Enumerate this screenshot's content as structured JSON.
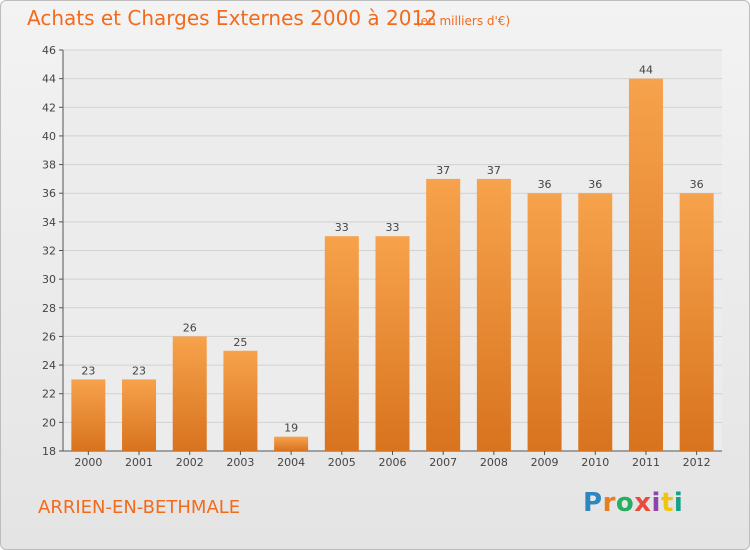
{
  "header": {
    "title": "Achats et Charges Externes 2000 à 2012",
    "unit": "(en milliers d'€)"
  },
  "footer": {
    "commune": "ARRIEN-EN-BETHMALE",
    "brand": "Proxiti",
    "brand_letters": [
      {
        "char": "P",
        "color": "#2e86c1"
      },
      {
        "char": "r",
        "color": "#e67e22"
      },
      {
        "char": "o",
        "color": "#27ae60"
      },
      {
        "char": "x",
        "color": "#e74c3c"
      },
      {
        "char": "i",
        "color": "#8e44ad"
      },
      {
        "char": "t",
        "color": "#f1c40f"
      },
      {
        "char": "i",
        "color": "#16a085"
      }
    ]
  },
  "colors": {
    "accent": "#f26b1d",
    "bar_top": "#f7a24c",
    "bar_bottom": "#d8731e",
    "grid": "#d2d2d2",
    "axis": "#555555"
  },
  "chart_data": {
    "type": "bar",
    "title": "Achats et Charges Externes 2000 à 2012",
    "subtitle": "(en milliers d'€)",
    "categories": [
      "2000",
      "2001",
      "2002",
      "2003",
      "2004",
      "2005",
      "2006",
      "2007",
      "2008",
      "2009",
      "2010",
      "2011",
      "2012"
    ],
    "values": [
      23,
      23,
      26,
      25,
      19,
      33,
      33,
      37,
      37,
      36,
      36,
      44,
      36
    ],
    "ylim": [
      18,
      46
    ],
    "yticks": [
      18,
      20,
      22,
      24,
      26,
      28,
      30,
      32,
      34,
      36,
      38,
      40,
      42,
      44,
      46
    ],
    "grid": true,
    "xlabel": "",
    "ylabel": ""
  }
}
